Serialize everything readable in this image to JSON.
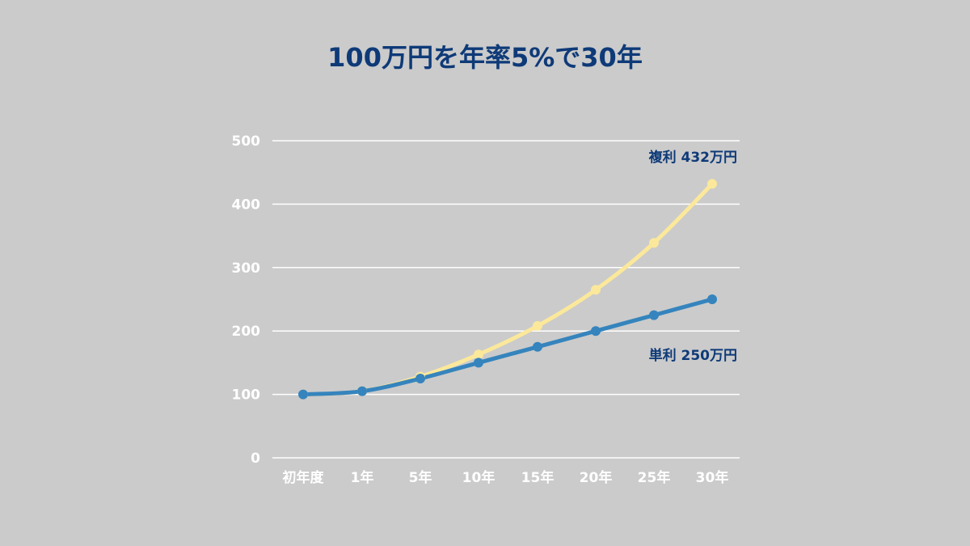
{
  "chart_data": {
    "type": "line",
    "title": "100万円を年率5%で30年",
    "categories": [
      "初年度",
      "1年",
      "5年",
      "10年",
      "15年",
      "20年",
      "25年",
      "30年"
    ],
    "ylim": [
      0,
      500
    ],
    "yticks": [
      "0",
      "100",
      "200",
      "300",
      "400",
      "500"
    ],
    "grid": true,
    "series": [
      {
        "name": "複利",
        "values": [
          100,
          105,
          128,
          163,
          208,
          265,
          339,
          432
        ],
        "color": "#fbe89a"
      },
      {
        "name": "単利",
        "values": [
          100,
          105,
          125,
          150,
          175,
          200,
          225,
          250
        ],
        "color": "#3584bd"
      }
    ],
    "annotations": [
      {
        "series": "複利",
        "label": "複利 432万円"
      },
      {
        "series": "単利",
        "label": "単利 250万円"
      }
    ]
  }
}
